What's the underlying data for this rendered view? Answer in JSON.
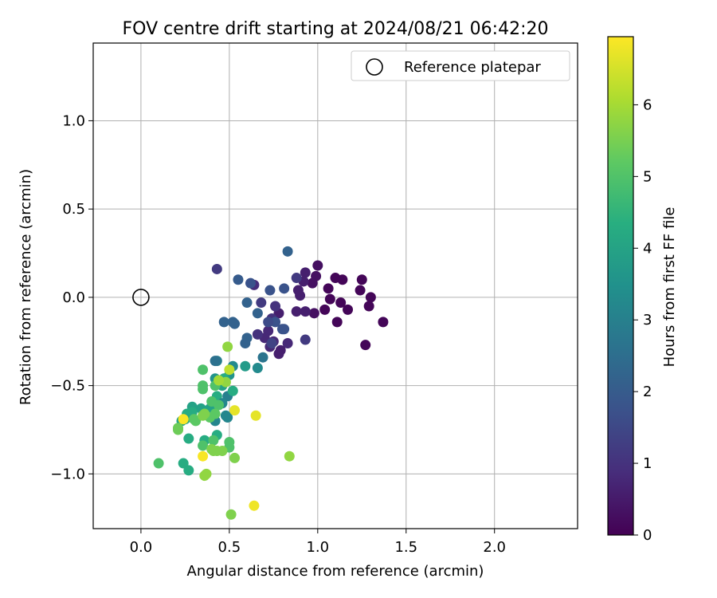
{
  "chart_data": {
    "type": "scatter",
    "title": "FOV centre drift starting at 2024/08/21 06:42:20",
    "xlabel": "Angular distance from reference (arcmin)",
    "ylabel": "Rotation from reference (arcmin)",
    "xlim": [
      -0.27,
      2.47
    ],
    "ylim": [
      -1.31,
      1.44
    ],
    "xticks": [
      0.0,
      0.5,
      1.0,
      1.5,
      2.0
    ],
    "xtick_labels": [
      "0.0",
      "0.5",
      "1.0",
      "1.5",
      "2.0"
    ],
    "yticks": [
      -1.0,
      -0.5,
      0.0,
      0.5,
      1.0
    ],
    "ytick_labels": [
      "−1.0",
      "−0.5",
      "0.0",
      "0.5",
      "1.0"
    ],
    "grid": true,
    "legend": {
      "position": "top-right",
      "entries": [
        {
          "label": "Reference platepar",
          "marker": "open-circle"
        }
      ]
    },
    "reference_point": {
      "x": 0.0,
      "y": 0.0
    },
    "colorbar": {
      "label": "Hours from first FF file",
      "colormap": "viridis",
      "range": [
        0,
        6.95
      ],
      "ticks": [
        0,
        1,
        2,
        3,
        4,
        5,
        6
      ],
      "tick_labels": [
        "0",
        "1",
        "2",
        "3",
        "4",
        "5",
        "6"
      ]
    },
    "series": [
      {
        "points": [
          {
            "x": 1.27,
            "y": -0.27,
            "h": 0.1
          },
          {
            "x": 1.37,
            "y": -0.14,
            "h": 0.1
          },
          {
            "x": 1.3,
            "y": 0.0,
            "h": 0.1
          },
          {
            "x": 1.29,
            "y": -0.05,
            "h": 0.1
          },
          {
            "x": 1.25,
            "y": 0.1,
            "h": 0.1
          },
          {
            "x": 1.24,
            "y": 0.04,
            "h": 0.1
          },
          {
            "x": 1.17,
            "y": -0.07,
            "h": 0.1
          },
          {
            "x": 1.14,
            "y": 0.1,
            "h": 0.1
          },
          {
            "x": 1.13,
            "y": -0.03,
            "h": 0.1
          },
          {
            "x": 1.11,
            "y": -0.14,
            "h": 0.1
          },
          {
            "x": 1.1,
            "y": 0.11,
            "h": 0.1
          },
          {
            "x": 1.07,
            "y": -0.01,
            "h": 0.1
          },
          {
            "x": 1.06,
            "y": 0.05,
            "h": 0.1
          },
          {
            "x": 1.04,
            "y": -0.07,
            "h": 0.1
          },
          {
            "x": 1.0,
            "y": 0.18,
            "h": 0.3
          },
          {
            "x": 0.99,
            "y": 0.12,
            "h": 0.3
          },
          {
            "x": 0.98,
            "y": -0.09,
            "h": 0.3
          },
          {
            "x": 0.97,
            "y": 0.08,
            "h": 0.3
          },
          {
            "x": 0.93,
            "y": 0.14,
            "h": 0.6
          },
          {
            "x": 0.93,
            "y": -0.08,
            "h": 0.6
          },
          {
            "x": 0.92,
            "y": 0.09,
            "h": 0.6
          },
          {
            "x": 0.9,
            "y": 0.01,
            "h": 0.6
          },
          {
            "x": 0.89,
            "y": 0.04,
            "h": 0.6
          },
          {
            "x": 0.88,
            "y": -0.08,
            "h": 0.6
          },
          {
            "x": 0.88,
            "y": 0.11,
            "h": 1.2
          },
          {
            "x": 0.83,
            "y": -0.26,
            "h": 0.8
          },
          {
            "x": 0.79,
            "y": -0.3,
            "h": 0.6
          },
          {
            "x": 0.78,
            "y": -0.32,
            "h": 0.6
          },
          {
            "x": 0.78,
            "y": -0.09,
            "h": 0.6
          },
          {
            "x": 0.76,
            "y": -0.05,
            "h": 1.0
          },
          {
            "x": 0.75,
            "y": -0.25,
            "h": 0.8
          },
          {
            "x": 0.74,
            "y": -0.12,
            "h": 1.0
          },
          {
            "x": 0.73,
            "y": -0.28,
            "h": 0.8
          },
          {
            "x": 0.72,
            "y": -0.19,
            "h": 0.8
          },
          {
            "x": 0.7,
            "y": -0.23,
            "h": 0.8
          },
          {
            "x": 0.68,
            "y": -0.03,
            "h": 1.2
          },
          {
            "x": 0.66,
            "y": -0.21,
            "h": 1.0
          },
          {
            "x": 0.64,
            "y": 0.07,
            "h": 0.9
          },
          {
            "x": 0.93,
            "y": -0.24,
            "h": 1.2
          },
          {
            "x": 0.43,
            "y": 0.16,
            "h": 1.2
          },
          {
            "x": 0.83,
            "y": 0.26,
            "h": 2.2
          },
          {
            "x": 0.62,
            "y": 0.08,
            "h": 1.8
          },
          {
            "x": 0.55,
            "y": 0.1,
            "h": 2.0
          },
          {
            "x": 0.81,
            "y": 0.05,
            "h": 1.8
          },
          {
            "x": 0.73,
            "y": 0.04,
            "h": 1.8
          },
          {
            "x": 0.6,
            "y": -0.03,
            "h": 2.2
          },
          {
            "x": 0.66,
            "y": -0.09,
            "h": 2.2
          },
          {
            "x": 0.8,
            "y": -0.18,
            "h": 1.8
          },
          {
            "x": 0.81,
            "y": -0.18,
            "h": 1.8
          },
          {
            "x": 0.76,
            "y": -0.14,
            "h": 1.8
          },
          {
            "x": 0.72,
            "y": -0.14,
            "h": 1.6
          },
          {
            "x": 0.47,
            "y": -0.14,
            "h": 2.2
          },
          {
            "x": 0.52,
            "y": -0.14,
            "h": 2.2
          },
          {
            "x": 0.53,
            "y": -0.15,
            "h": 2.2
          },
          {
            "x": 0.6,
            "y": -0.23,
            "h": 2.2
          },
          {
            "x": 0.59,
            "y": -0.26,
            "h": 2.2
          },
          {
            "x": 0.74,
            "y": -0.26,
            "h": 1.4
          },
          {
            "x": 0.69,
            "y": -0.34,
            "h": 2.7
          },
          {
            "x": 0.66,
            "y": -0.4,
            "h": 3.3
          },
          {
            "x": 0.52,
            "y": -0.39,
            "h": 3.3
          },
          {
            "x": 0.59,
            "y": -0.39,
            "h": 3.8
          },
          {
            "x": 0.43,
            "y": -0.36,
            "h": 3.0
          },
          {
            "x": 0.42,
            "y": -0.36,
            "h": 2.6
          },
          {
            "x": 0.5,
            "y": -0.44,
            "h": 3.6
          },
          {
            "x": 0.42,
            "y": -0.46,
            "h": 3.6
          },
          {
            "x": 0.47,
            "y": -0.46,
            "h": 4.3
          },
          {
            "x": 0.46,
            "y": -0.5,
            "h": 4.0
          },
          {
            "x": 0.49,
            "y": -0.56,
            "h": 3.0
          },
          {
            "x": 0.52,
            "y": -0.53,
            "h": 4.3
          },
          {
            "x": 0.43,
            "y": -0.56,
            "h": 4.3
          },
          {
            "x": 0.46,
            "y": -0.6,
            "h": 3.2
          },
          {
            "x": 0.41,
            "y": -0.66,
            "h": 3.2
          },
          {
            "x": 0.42,
            "y": -0.7,
            "h": 3.2
          },
          {
            "x": 0.48,
            "y": -0.67,
            "h": 3.2
          },
          {
            "x": 0.49,
            "y": -0.68,
            "h": 3.2
          },
          {
            "x": 0.39,
            "y": -0.63,
            "h": 4.0
          },
          {
            "x": 0.34,
            "y": -0.63,
            "h": 4.0
          },
          {
            "x": 0.29,
            "y": -0.62,
            "h": 4.0
          },
          {
            "x": 0.29,
            "y": -0.65,
            "h": 4.3
          },
          {
            "x": 0.26,
            "y": -0.66,
            "h": 4.3
          },
          {
            "x": 0.25,
            "y": -0.69,
            "h": 4.0
          },
          {
            "x": 0.23,
            "y": -0.7,
            "h": 4.0
          },
          {
            "x": 0.27,
            "y": -0.8,
            "h": 4.3
          },
          {
            "x": 0.36,
            "y": -0.81,
            "h": 4.3
          },
          {
            "x": 0.43,
            "y": -0.78,
            "h": 4.3
          },
          {
            "x": 0.24,
            "y": -0.94,
            "h": 4.3
          },
          {
            "x": 0.27,
            "y": -0.98,
            "h": 4.3
          },
          {
            "x": 0.35,
            "y": -0.41,
            "h": 5.0
          },
          {
            "x": 0.35,
            "y": -0.5,
            "h": 5.0
          },
          {
            "x": 0.35,
            "y": -0.52,
            "h": 5.0
          },
          {
            "x": 0.42,
            "y": -0.5,
            "h": 5.0
          },
          {
            "x": 0.4,
            "y": -0.59,
            "h": 5.0
          },
          {
            "x": 0.44,
            "y": -0.61,
            "h": 5.0
          },
          {
            "x": 0.41,
            "y": -0.81,
            "h": 5.0
          },
          {
            "x": 0.35,
            "y": -0.84,
            "h": 5.0
          },
          {
            "x": 0.5,
            "y": -0.82,
            "h": 5.0
          },
          {
            "x": 0.5,
            "y": -0.85,
            "h": 5.0
          },
          {
            "x": 0.1,
            "y": -0.94,
            "h": 5.0
          },
          {
            "x": 0.39,
            "y": -0.68,
            "h": 5.2
          },
          {
            "x": 0.42,
            "y": -0.66,
            "h": 5.2
          },
          {
            "x": 0.3,
            "y": -0.69,
            "h": 5.2
          },
          {
            "x": 0.31,
            "y": -0.7,
            "h": 5.2
          },
          {
            "x": 0.21,
            "y": -0.74,
            "h": 5.4
          },
          {
            "x": 0.21,
            "y": -0.75,
            "h": 5.4
          },
          {
            "x": 0.36,
            "y": -0.66,
            "h": 5.6
          },
          {
            "x": 0.35,
            "y": -0.67,
            "h": 5.6
          },
          {
            "x": 0.43,
            "y": -0.87,
            "h": 5.6
          },
          {
            "x": 0.4,
            "y": -0.86,
            "h": 5.6
          },
          {
            "x": 0.41,
            "y": -0.87,
            "h": 5.6
          },
          {
            "x": 0.46,
            "y": -0.87,
            "h": 5.6
          },
          {
            "x": 0.53,
            "y": -0.91,
            "h": 5.6
          },
          {
            "x": 0.37,
            "y": -1.0,
            "h": 5.8
          },
          {
            "x": 0.36,
            "y": -1.01,
            "h": 5.8
          },
          {
            "x": 0.51,
            "y": -1.23,
            "h": 5.6
          },
          {
            "x": 0.84,
            "y": -0.9,
            "h": 5.8
          },
          {
            "x": 0.49,
            "y": -0.28,
            "h": 5.8
          },
          {
            "x": 0.48,
            "y": -0.48,
            "h": 5.8
          },
          {
            "x": 0.44,
            "y": -0.47,
            "h": 6.0
          },
          {
            "x": 0.5,
            "y": -0.41,
            "h": 6.3
          },
          {
            "x": 0.53,
            "y": -0.64,
            "h": 6.7
          },
          {
            "x": 0.65,
            "y": -0.67,
            "h": 6.7
          },
          {
            "x": 0.24,
            "y": -0.69,
            "h": 6.9
          },
          {
            "x": 0.35,
            "y": -0.9,
            "h": 6.9
          },
          {
            "x": 0.64,
            "y": -1.18,
            "h": 6.8
          }
        ]
      }
    ]
  }
}
